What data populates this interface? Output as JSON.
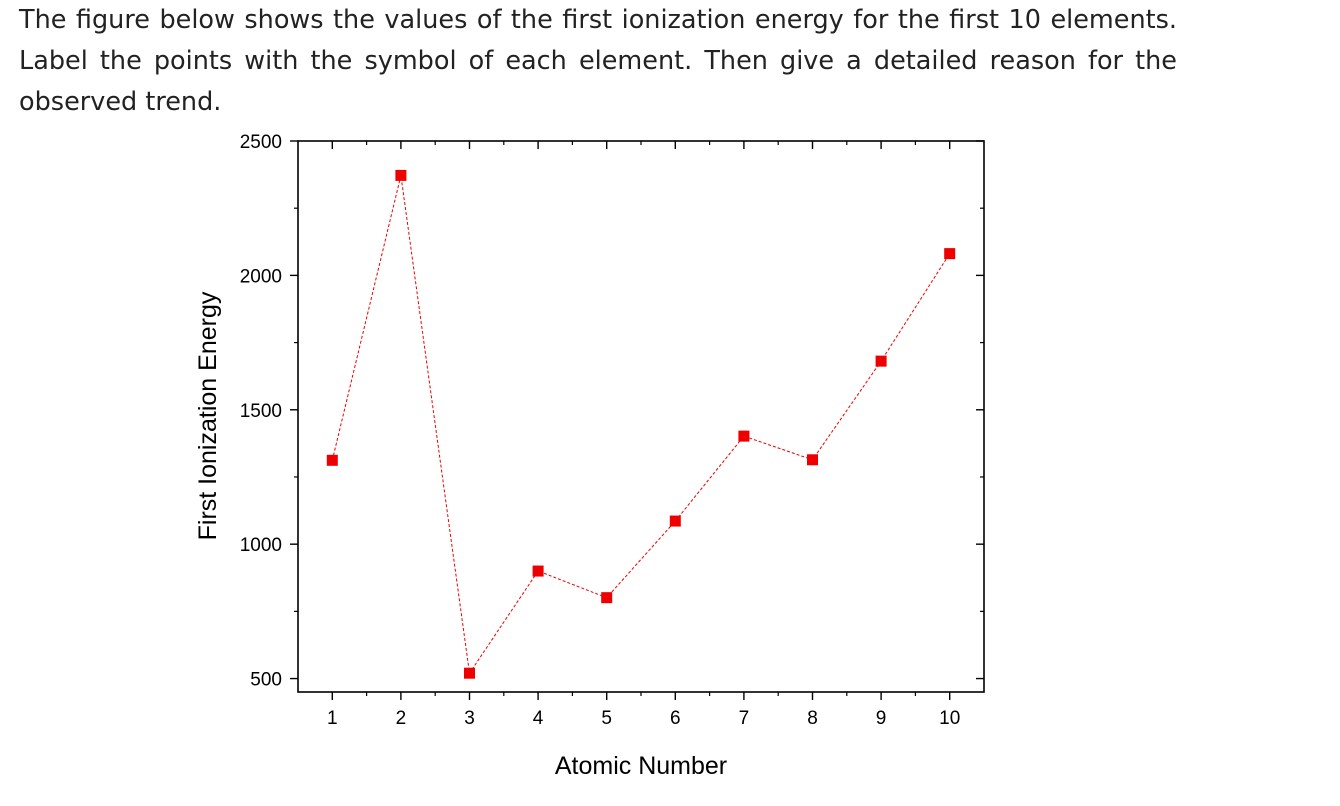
{
  "question": {
    "text": "The figure below shows the values of the first ionization energy for the first 10 elements. Label the points with the symbol of each element. Then give a detailed reason for the observed trend."
  },
  "chart_data": {
    "type": "scatter",
    "title": "",
    "xlabel": "Atomic Number",
    "ylabel": "First Ionization Energy",
    "xlim": [
      0.5,
      10.5
    ],
    "ylim": [
      450,
      2500
    ],
    "x_ticks": [
      1,
      2,
      3,
      4,
      5,
      6,
      7,
      8,
      9,
      10
    ],
    "y_ticks": [
      500,
      1000,
      1500,
      2000,
      2500
    ],
    "grid": false,
    "legend": "none",
    "series": [
      {
        "x": [
          1,
          2,
          3,
          4,
          5,
          6,
          7,
          8,
          9,
          10
        ],
        "y": [
          1312,
          2372,
          520,
          900,
          801,
          1086,
          1402,
          1314,
          1681,
          2081
        ],
        "marker": "square",
        "line_style": "dashed",
        "color": "#ee0000"
      }
    ]
  }
}
